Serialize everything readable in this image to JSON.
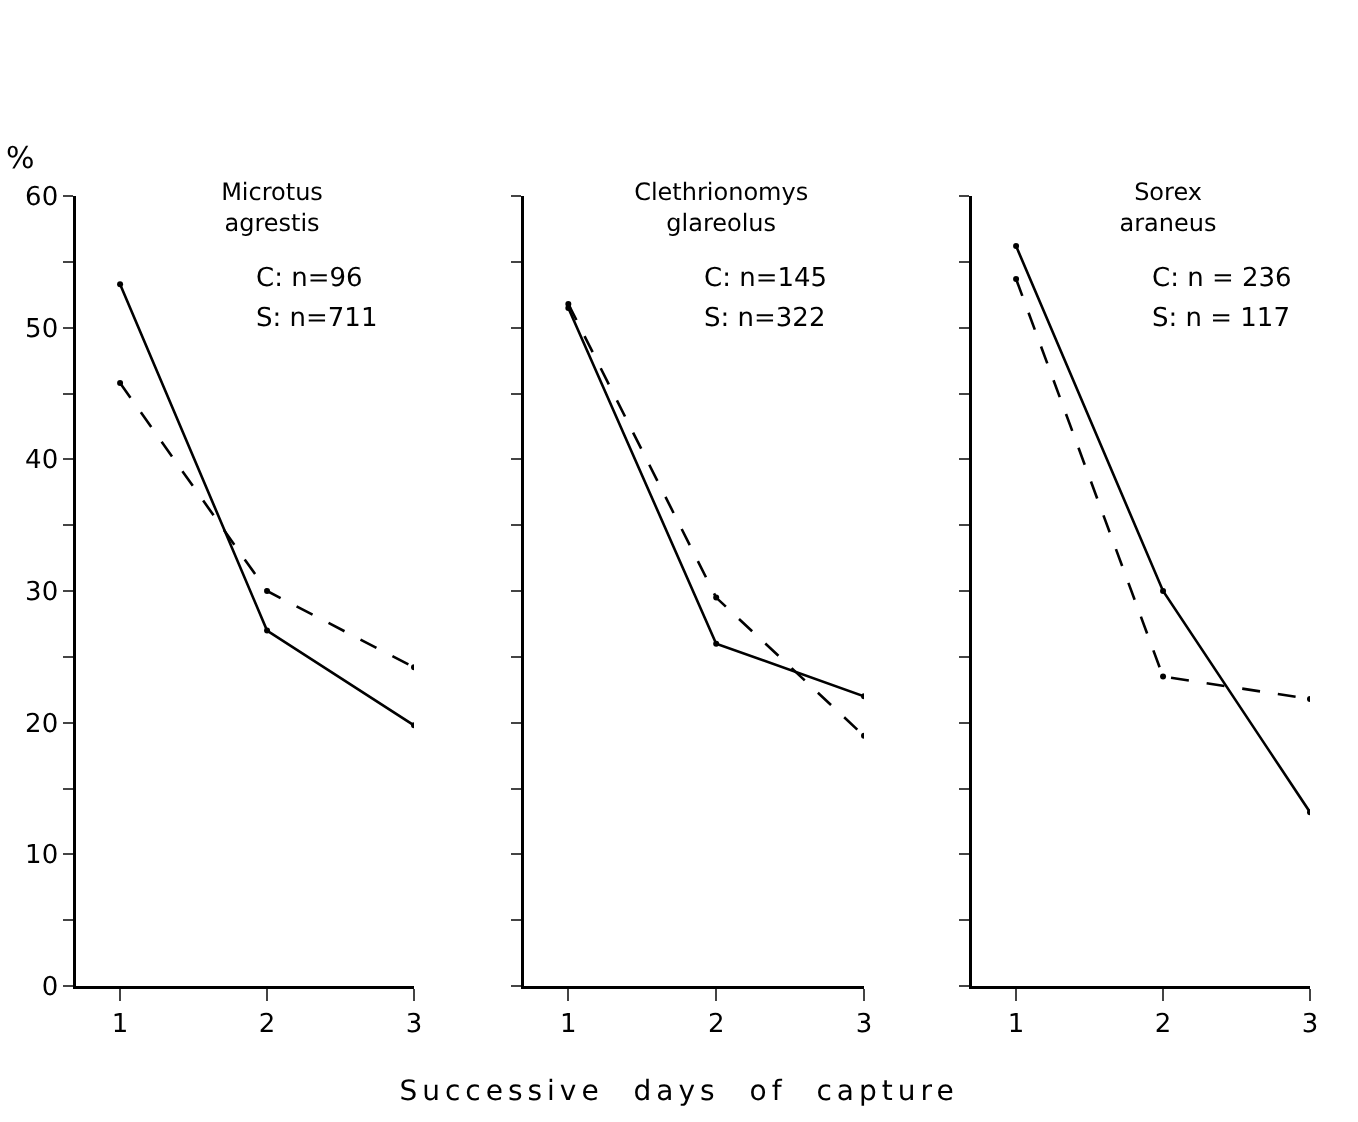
{
  "chart_data": [
    {
      "type": "line",
      "title": "Microtus agrestis",
      "ylabel": "%",
      "annotations": [
        "C: n=96",
        "S: n=711"
      ],
      "x": [
        1,
        2,
        3
      ],
      "xlim": [
        0.7,
        3
      ],
      "xticks": [
        1,
        2,
        3
      ],
      "ylim": [
        0,
        60
      ],
      "yticks": [
        0,
        {
          "value": 5,
          "label": null
        },
        10,
        {
          "value": 15,
          "label": null
        },
        20,
        {
          "value": 25,
          "label": null
        },
        30,
        {
          "value": 35,
          "label": null
        },
        40,
        {
          "value": 45,
          "label": null
        },
        50,
        {
          "value": 55,
          "label": null
        },
        60
      ],
      "marker": "circle",
      "series": [
        {
          "color": "#000000",
          "line_style": "solid",
          "values": [
            53.3,
            27,
            19.8
          ]
        },
        {
          "color": "#000000",
          "line_style": "dashed",
          "values": [
            45.8,
            30,
            24.2
          ]
        }
      ]
    },
    {
      "type": "line",
      "title": "Clethrionomys glareolus",
      "xlabel": "Successive days of capture",
      "annotations": [
        "C: n=145",
        "S: n=322"
      ],
      "x": [
        1,
        2,
        3
      ],
      "xlim": [
        0.7,
        3
      ],
      "xticks": [
        1,
        2,
        3
      ],
      "ylim": [
        0,
        60
      ],
      "yticks": [
        0,
        {
          "value": 5,
          "label": null
        },
        10,
        {
          "value": 15,
          "label": null
        },
        20,
        {
          "value": 25,
          "label": null
        },
        30,
        {
          "value": 35,
          "label": null
        },
        40,
        {
          "value": 45,
          "label": null
        },
        50,
        {
          "value": 55,
          "label": null
        },
        60
      ],
      "tick_labels": "x",
      "marker": "circle",
      "series": [
        {
          "color": "#000000",
          "line_style": "solid",
          "values": [
            51.5,
            26,
            22
          ]
        },
        {
          "color": "#000000",
          "line_style": "dashed",
          "values": [
            51.8,
            29.5,
            19
          ]
        }
      ]
    },
    {
      "type": "line",
      "title": "Sorex araneus",
      "annotations": [
        "C: n = 236",
        "S: n = 117"
      ],
      "x": [
        1,
        2,
        3
      ],
      "xlim": [
        0.7,
        3
      ],
      "xticks": [
        1,
        2,
        3
      ],
      "ylim": [
        0,
        60
      ],
      "yticks": [
        0,
        {
          "value": 5,
          "label": null
        },
        10,
        {
          "value": 15,
          "label": null
        },
        20,
        {
          "value": 25,
          "label": null
        },
        30,
        {
          "value": 35,
          "label": null
        },
        40,
        {
          "value": 45,
          "label": null
        },
        50,
        {
          "value": 55,
          "label": null
        },
        60
      ],
      "tick_labels": "x",
      "marker": "circle",
      "series": [
        {
          "color": "#000000",
          "line_style": "solid",
          "values": [
            56.2,
            30,
            13.2
          ]
        },
        {
          "color": "#000000",
          "line_style": "dashed",
          "values": [
            53.7,
            23.5,
            21.8
          ]
        }
      ]
    }
  ]
}
